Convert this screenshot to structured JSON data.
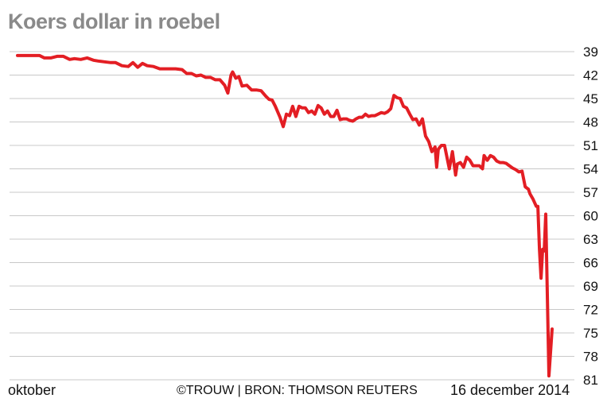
{
  "chart_data": {
    "type": "line",
    "title": "Koers dollar in roebel",
    "y_inverted": true,
    "ylim": [
      39,
      81
    ],
    "y_ticks": [
      "39",
      "42",
      "45",
      "48",
      "51",
      "54",
      "57",
      "60",
      "63",
      "66",
      "69",
      "72",
      "75",
      "78",
      "81"
    ],
    "x_start_label": "oktober",
    "x_end_label": "16 december 2014",
    "grid": "horizontal",
    "line_color": "#e31e24",
    "series": [
      {
        "points": [
          [
            0,
            39.5
          ],
          [
            3,
            39.5
          ],
          [
            6,
            39.5
          ],
          [
            10,
            39.5
          ],
          [
            14,
            39.5
          ],
          [
            17,
            39.8
          ],
          [
            21,
            39.8
          ],
          [
            25,
            39.6
          ],
          [
            29,
            39.6
          ],
          [
            33,
            40.0
          ],
          [
            36,
            39.9
          ],
          [
            40,
            40.0
          ],
          [
            44,
            39.8
          ],
          [
            48,
            40.1
          ],
          [
            51,
            40.2
          ],
          [
            55,
            40.3
          ],
          [
            59,
            40.4
          ],
          [
            62,
            40.4
          ],
          [
            66,
            40.8
          ],
          [
            70,
            40.9
          ],
          [
            73,
            40.4
          ],
          [
            76,
            41.0
          ],
          [
            79,
            40.5
          ],
          [
            82,
            40.8
          ],
          [
            86,
            40.9
          ],
          [
            90,
            41.2
          ],
          [
            95,
            41.2
          ],
          [
            100,
            41.2
          ],
          [
            104,
            41.3
          ],
          [
            107,
            41.8
          ],
          [
            110,
            41.8
          ],
          [
            113,
            42.1
          ],
          [
            116,
            42.0
          ],
          [
            119,
            42.3
          ],
          [
            122,
            42.3
          ],
          [
            125,
            42.6
          ],
          [
            128,
            42.6
          ],
          [
            131,
            43.3
          ],
          [
            133,
            44.3
          ],
          [
            135,
            42.0
          ],
          [
            136,
            41.6
          ],
          [
            138,
            42.4
          ],
          [
            140,
            42.2
          ],
          [
            142,
            43.4
          ],
          [
            145,
            43.3
          ],
          [
            148,
            43.9
          ],
          [
            151,
            43.9
          ],
          [
            154,
            44.0
          ],
          [
            157,
            44.7
          ],
          [
            159,
            45.1
          ],
          [
            161,
            45.2
          ],
          [
            163,
            46.0
          ],
          [
            166,
            47.4
          ],
          [
            168,
            48.6
          ],
          [
            170,
            47.0
          ],
          [
            172,
            47.2
          ],
          [
            174,
            46.0
          ],
          [
            176,
            47.3
          ],
          [
            178,
            46.0
          ],
          [
            180,
            46.2
          ],
          [
            182,
            46.2
          ],
          [
            184,
            46.8
          ],
          [
            186,
            46.6
          ],
          [
            188,
            47.0
          ],
          [
            190,
            45.9
          ],
          [
            192,
            46.2
          ],
          [
            194,
            47.0
          ],
          [
            196,
            46.6
          ],
          [
            198,
            47.3
          ],
          [
            200,
            47.3
          ],
          [
            202,
            46.5
          ],
          [
            204,
            47.7
          ],
          [
            206,
            47.6
          ],
          [
            208,
            47.6
          ],
          [
            210,
            47.8
          ],
          [
            212,
            47.9
          ],
          [
            214,
            47.6
          ],
          [
            216,
            47.4
          ],
          [
            218,
            47.4
          ],
          [
            220,
            47.0
          ],
          [
            222,
            47.3
          ],
          [
            224,
            47.2
          ],
          [
            226,
            47.2
          ],
          [
            228,
            47.0
          ],
          [
            230,
            46.8
          ],
          [
            232,
            46.9
          ],
          [
            234,
            46.7
          ],
          [
            236,
            46.3
          ],
          [
            238,
            44.6
          ],
          [
            240,
            44.9
          ],
          [
            242,
            45.0
          ],
          [
            244,
            46.0
          ],
          [
            246,
            46.2
          ],
          [
            248,
            47.0
          ],
          [
            250,
            47.7
          ],
          [
            252,
            47.6
          ],
          [
            254,
            48.4
          ],
          [
            256,
            47.6
          ],
          [
            258,
            49.8
          ],
          [
            260,
            50.5
          ],
          [
            262,
            51.8
          ],
          [
            264,
            51.2
          ],
          [
            265,
            53.8
          ],
          [
            266,
            51.5
          ],
          [
            268,
            51.0
          ],
          [
            270,
            51.0
          ],
          [
            272,
            53.0
          ],
          [
            273,
            54.0
          ],
          [
            275,
            51.8
          ],
          [
            277,
            54.8
          ],
          [
            278,
            53.4
          ],
          [
            280,
            53.2
          ],
          [
            282,
            53.8
          ],
          [
            284,
            52.5
          ],
          [
            286,
            52.9
          ],
          [
            288,
            53.6
          ],
          [
            290,
            53.6
          ],
          [
            292,
            53.6
          ],
          [
            294,
            54.0
          ],
          [
            295,
            52.3
          ],
          [
            297,
            52.9
          ],
          [
            299,
            52.3
          ],
          [
            301,
            52.5
          ],
          [
            303,
            53.0
          ],
          [
            305,
            53.2
          ],
          [
            307,
            53.2
          ],
          [
            309,
            53.3
          ],
          [
            311,
            53.6
          ],
          [
            313,
            53.9
          ],
          [
            315,
            54.1
          ],
          [
            317,
            54.4
          ],
          [
            319,
            54.3
          ],
          [
            321,
            56.3
          ],
          [
            323,
            56.6
          ],
          [
            324,
            57.2
          ],
          [
            326,
            57.9
          ],
          [
            328,
            58.8
          ],
          [
            329,
            58.8
          ],
          [
            330,
            64.3
          ],
          [
            331,
            68.0
          ],
          [
            332,
            64.3
          ],
          [
            333,
            64.5
          ],
          [
            334,
            59.8
          ],
          [
            336,
            80.5
          ],
          [
            338,
            74.5
          ]
        ]
      }
    ]
  },
  "footer": {
    "left": "oktober",
    "center": "©TROUW | BRON: THOMSON REUTERS",
    "right": "16 december 2014"
  }
}
